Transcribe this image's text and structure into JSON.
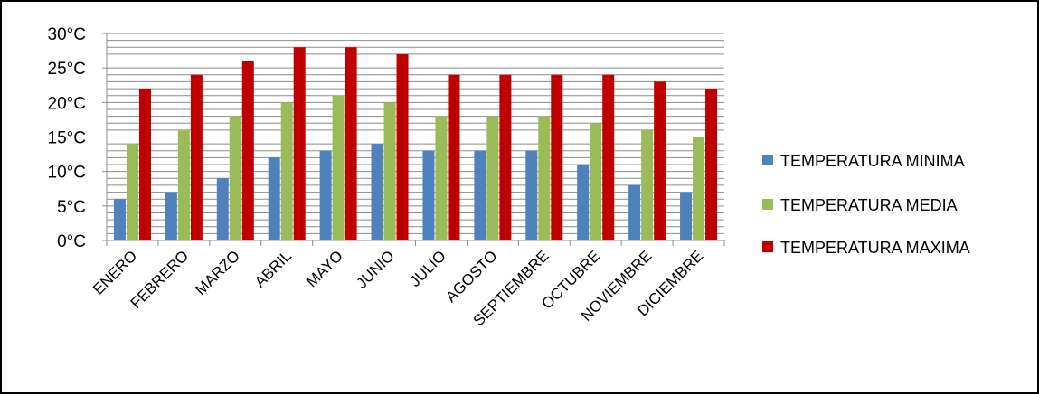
{
  "chart_data": {
    "type": "bar",
    "categories": [
      "ENERO",
      "FEBRERO",
      "MARZO",
      "ABRIL",
      "MAYO",
      "JUNIO",
      "JULIO",
      "AGOSTO",
      "SEPTIEMBRE",
      "OCTUBRE",
      "NOVIEMBRE",
      "DICIEMBRE"
    ],
    "series": [
      {
        "name": "TEMPERATURA MINIMA",
        "color": "#4F81BD",
        "values": [
          6,
          7,
          9,
          12,
          13,
          14,
          13,
          13,
          13,
          11,
          8,
          7
        ]
      },
      {
        "name": "TEMPERATURA MEDIA",
        "color": "#9BBB59",
        "values": [
          14,
          16,
          18,
          20,
          21,
          20,
          18,
          18,
          18,
          17,
          16,
          15
        ]
      },
      {
        "name": "TEMPERATURA MAXIMA",
        "color": "#C00000",
        "values": [
          22,
          24,
          26,
          28,
          28,
          27,
          24,
          24,
          24,
          24,
          23,
          22
        ]
      }
    ],
    "yticks": [
      "0°C",
      "5°C",
      "10°C",
      "15°C",
      "20°C",
      "25°C",
      "30°C"
    ],
    "ylim": [
      0,
      30
    ],
    "ystep": 1,
    "grid": true,
    "legend_position": "right"
  }
}
